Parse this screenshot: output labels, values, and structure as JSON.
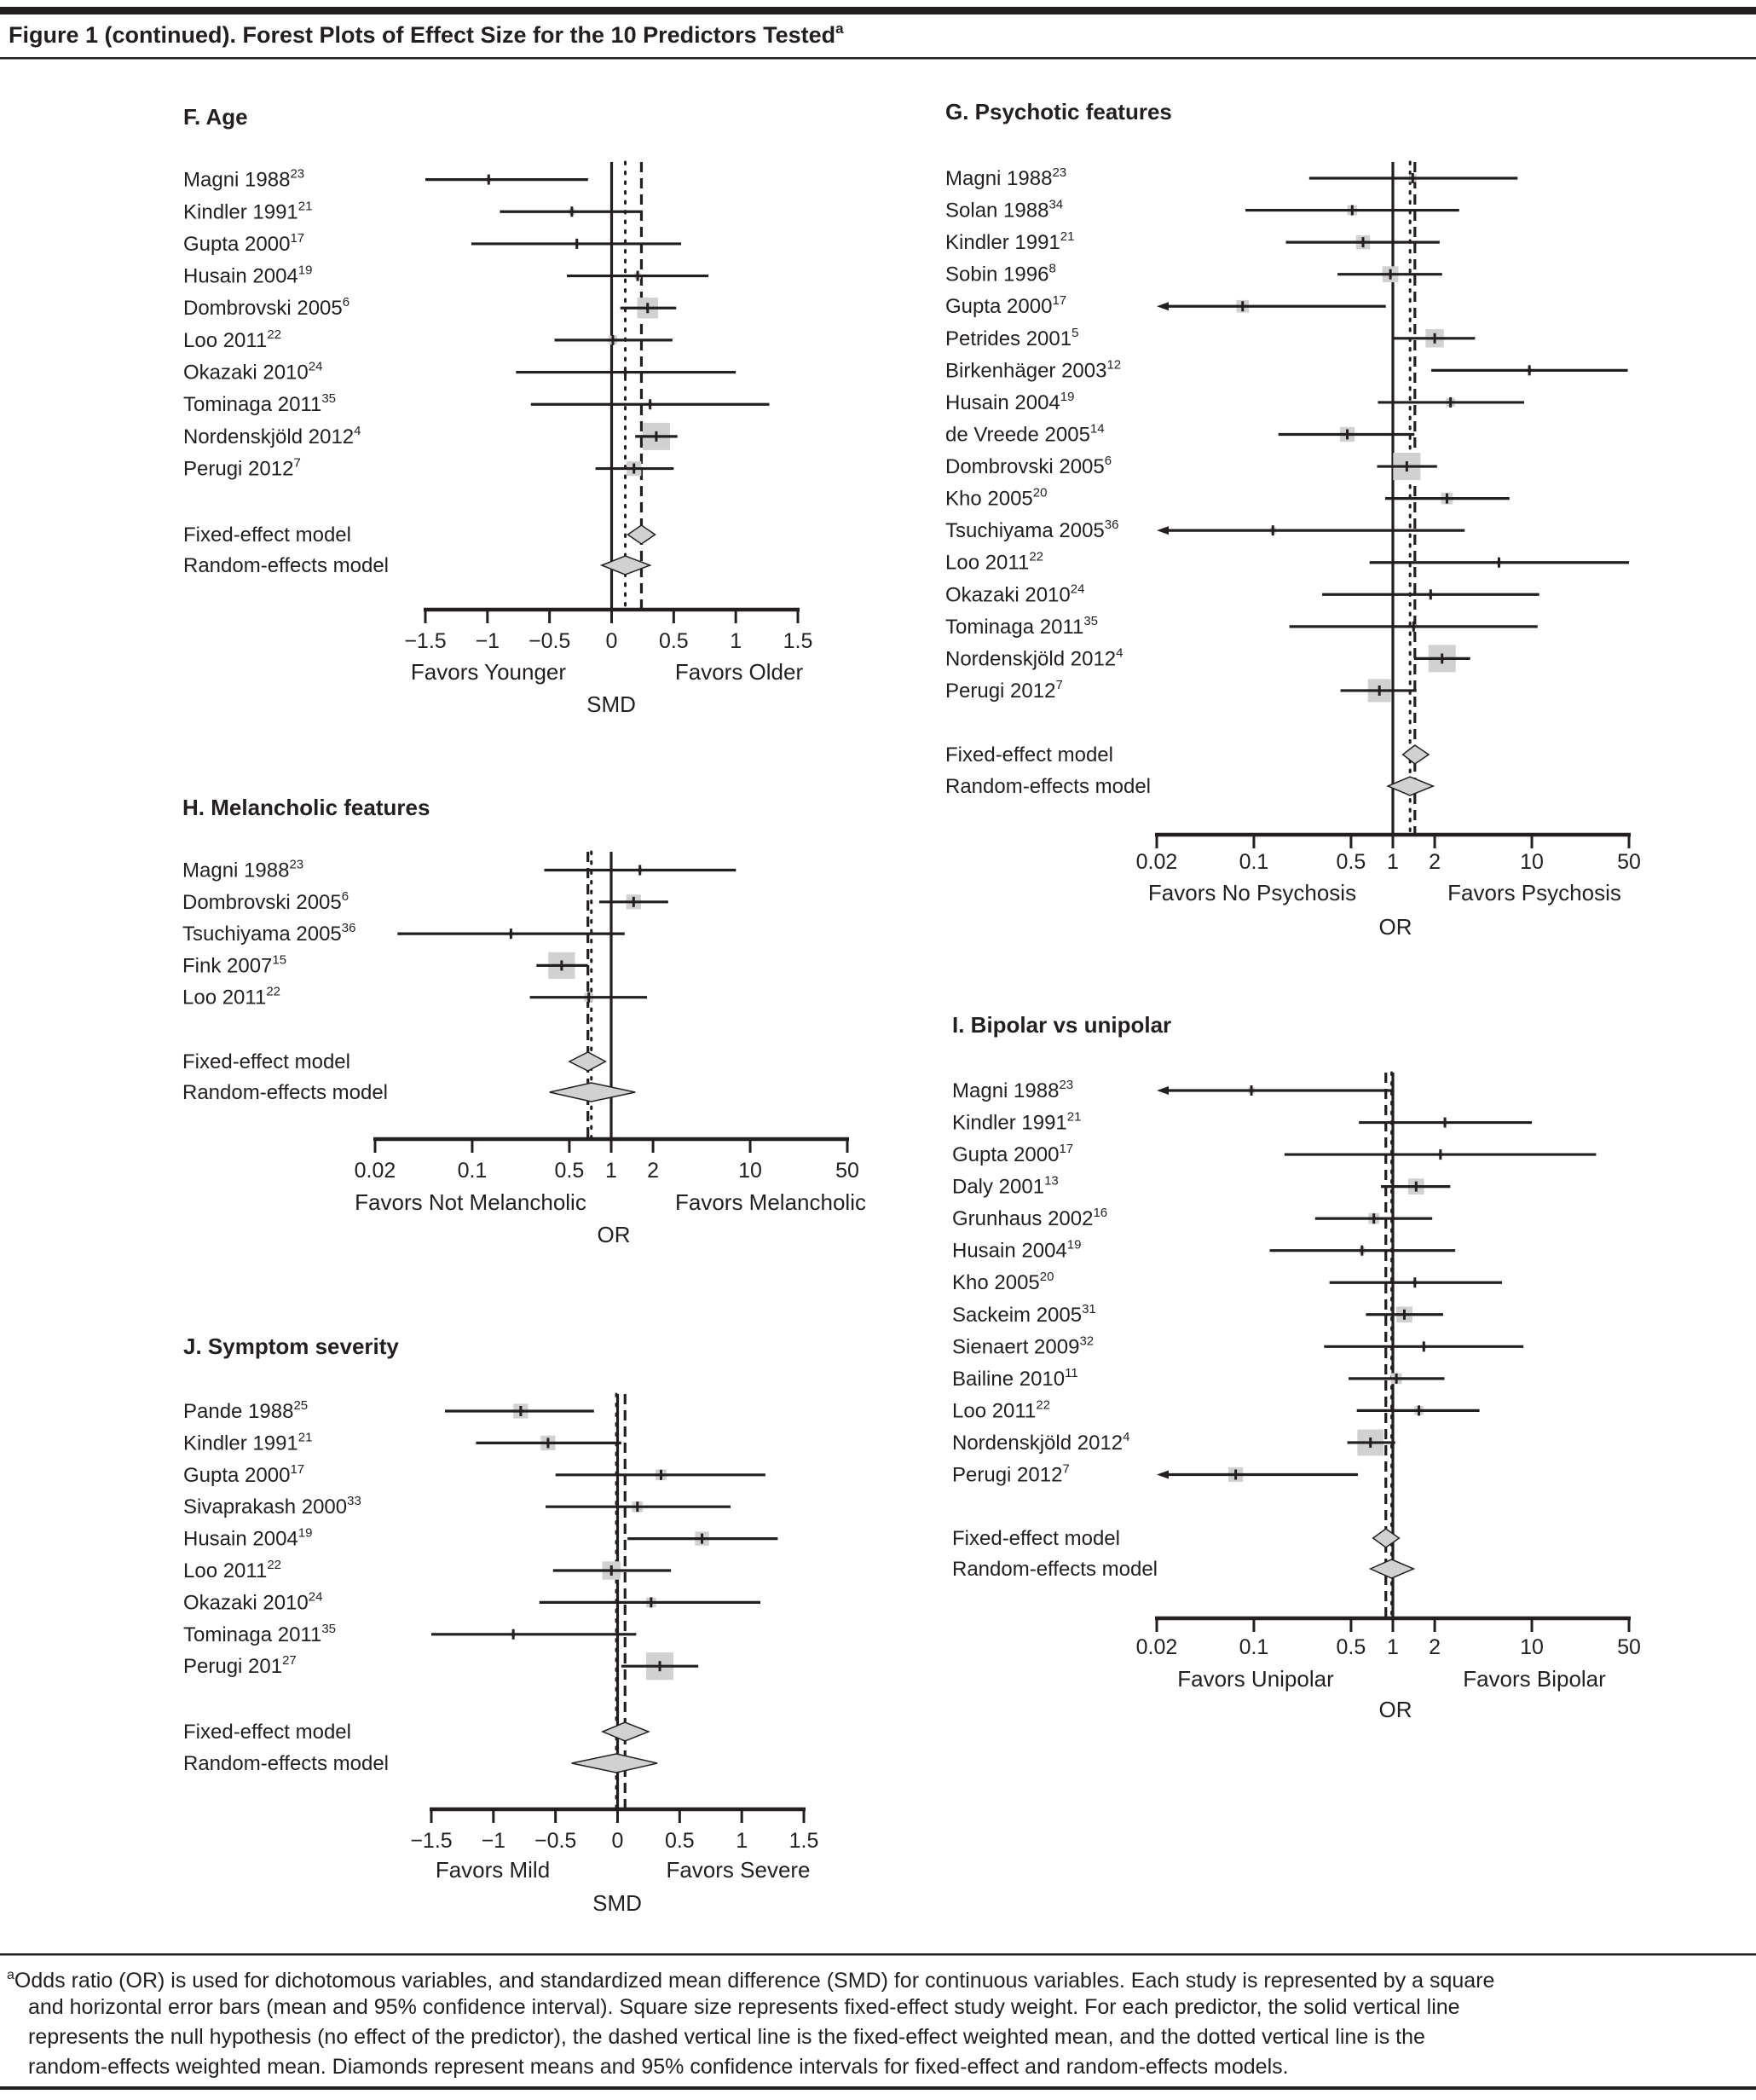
{
  "figure": {
    "title": "Figure 1 (continued). Forest Plots of Effect Size for the 10 Predictors Tested",
    "title_sup": "a"
  },
  "footnote": {
    "marker": "a",
    "lines": [
      "Odds ratio (OR) is used for dichotomous variables, and standardized mean difference (SMD) for continuous variables. Each study is represented by a square",
      "and horizontal error bars (mean and 95% confidence interval). Square size represents fixed-effect study weight. For each predictor, the solid vertical line",
      "represents the null hypothesis (no effect of the predictor), the dashed vertical line is the fixed-effect weighted mean, and the dotted vertical line is the",
      "random-effects weighted mean. Diamonds represent means and 95% confidence intervals for fixed-effect and random-effects models."
    ]
  },
  "colors": {
    "ink": "#231f20",
    "box": "#d1d1d1",
    "diamond": "#d1d1d1"
  },
  "chart_data": [
    {
      "id": "F",
      "type": "forest",
      "title": "F. Age",
      "scale": "linear",
      "xlim": [
        -1.5,
        1.5
      ],
      "null_value": 0,
      "ticks": [
        -1.5,
        -1,
        -0.5,
        0,
        0.5,
        1,
        1.5
      ],
      "tick_labels": [
        "−1.5",
        "−1",
        "−0.5",
        "0",
        "0.5",
        "1",
        "1.5"
      ],
      "favors_left": "Favors Younger",
      "favors_right": "Favors Older",
      "xlabel": "SMD",
      "studies": [
        {
          "name": "Magni 1988",
          "ref": "23",
          "est": -0.99,
          "lo": -1.79,
          "hi": -0.19,
          "weight": 1
        },
        {
          "name": "Kindler 1991",
          "ref": "21",
          "est": -0.32,
          "lo": -0.9,
          "hi": 0.25,
          "weight": 2
        },
        {
          "name": "Gupta 2000",
          "ref": "17",
          "est": -0.28,
          "lo": -1.13,
          "hi": 0.56,
          "weight": 1
        },
        {
          "name": "Husain 2004",
          "ref": "19",
          "est": 0.21,
          "lo": -0.36,
          "hi": 0.78,
          "weight": 2
        },
        {
          "name": "Dombrovski 2005",
          "ref": "6",
          "est": 0.29,
          "lo": 0.07,
          "hi": 0.52,
          "weight": 22
        },
        {
          "name": "Loo 2011",
          "ref": "22",
          "est": 0.01,
          "lo": -0.46,
          "hi": 0.49,
          "weight": 4
        },
        {
          "name": "Okazaki 2010",
          "ref": "24",
          "est": 0.11,
          "lo": -0.77,
          "hi": 1.0,
          "weight": 1
        },
        {
          "name": "Tominaga 2011",
          "ref": "35",
          "est": 0.31,
          "lo": -0.65,
          "hi": 1.27,
          "weight": 1
        },
        {
          "name": "Nordenskjöld 2012",
          "ref": "4",
          "est": 0.36,
          "lo": 0.19,
          "hi": 0.53,
          "weight": 38
        },
        {
          "name": "Perugi 2012",
          "ref": "7",
          "est": 0.18,
          "lo": -0.13,
          "hi": 0.5,
          "weight": 11
        }
      ],
      "fixed": {
        "label": "Fixed-effect model",
        "est": 0.24,
        "lo": 0.13,
        "hi": 0.35
      },
      "random": {
        "label": "Random-effects model",
        "est": 0.11,
        "lo": -0.08,
        "hi": 0.31
      }
    },
    {
      "id": "G",
      "type": "forest",
      "title": "G. Psychotic features",
      "scale": "log",
      "xlim": [
        0.02,
        50
      ],
      "null_value": 1,
      "ticks": [
        0.02,
        0.1,
        0.5,
        1,
        2,
        10,
        50
      ],
      "tick_labels": [
        "0.02",
        "0.1",
        "0.5",
        "1",
        "2",
        "10",
        "50"
      ],
      "favors_left": "Favors No Psychosis",
      "favors_right": "Favors Psychosis",
      "xlabel": "OR",
      "studies": [
        {
          "name": "Magni 1988",
          "ref": "23",
          "est": 1.39,
          "lo": 0.25,
          "hi": 7.9,
          "weight": 3
        },
        {
          "name": "Solan 1988",
          "ref": "34",
          "est": 0.51,
          "lo": 0.087,
          "hi": 3.0,
          "weight": 5
        },
        {
          "name": "Kindler 1991",
          "ref": "21",
          "est": 0.61,
          "lo": 0.17,
          "hi": 2.17,
          "weight": 10
        },
        {
          "name": "Sobin 1996",
          "ref": "8",
          "est": 0.96,
          "lo": 0.4,
          "hi": 2.26,
          "weight": 13
        },
        {
          "name": "Gupta 2000",
          "ref": "17",
          "est": 0.083,
          "lo": 0.02,
          "hi": 0.89,
          "weight": 8,
          "lo_truncated": true
        },
        {
          "name": "Petrides 2001",
          "ref": "5",
          "est": 2.0,
          "lo": 1.02,
          "hi": 3.9,
          "weight": 17
        },
        {
          "name": "Birkenhäger 2003",
          "ref": "12",
          "est": 9.6,
          "lo": 1.89,
          "hi": 49,
          "weight": 1
        },
        {
          "name": "Husain 2004",
          "ref": "19",
          "est": 2.6,
          "lo": 0.78,
          "hi": 8.8,
          "weight": 4
        },
        {
          "name": "de Vreede 2005",
          "ref": "14",
          "est": 0.47,
          "lo": 0.15,
          "hi": 1.43,
          "weight": 11
        },
        {
          "name": "Dombrovski 2005",
          "ref": "6",
          "est": 1.26,
          "lo": 0.77,
          "hi": 2.08,
          "weight": 38
        },
        {
          "name": "Kho 2005",
          "ref": "20",
          "est": 2.45,
          "lo": 0.88,
          "hi": 6.9,
          "weight": 7
        },
        {
          "name": "Tsuchiyama 2005",
          "ref": "36",
          "est": 0.137,
          "lo": 0.02,
          "hi": 3.29,
          "weight": 2,
          "lo_truncated": true
        },
        {
          "name": "Loo 2011",
          "ref": "22",
          "est": 5.8,
          "lo": 0.68,
          "hi": 50,
          "weight": 1
        },
        {
          "name": "Okazaki 2010",
          "ref": "24",
          "est": 1.87,
          "lo": 0.31,
          "hi": 11.3,
          "weight": 1
        },
        {
          "name": "Tominaga 2011",
          "ref": "35",
          "est": 1.41,
          "lo": 0.18,
          "hi": 11.0,
          "weight": 1
        },
        {
          "name": "Nordenskjöld 2012",
          "ref": "4",
          "est": 2.26,
          "lo": 1.42,
          "hi": 3.6,
          "weight": 38
        },
        {
          "name": "Perugi 2012",
          "ref": "7",
          "est": 0.8,
          "lo": 0.42,
          "hi": 1.48,
          "weight": 27
        }
      ],
      "fixed": {
        "label": "Fixed-effect model",
        "est": 1.44,
        "lo": 1.18,
        "hi": 1.81
      },
      "random": {
        "label": "Random-effects model",
        "est": 1.33,
        "lo": 0.92,
        "hi": 1.95
      }
    },
    {
      "id": "H",
      "type": "forest",
      "title": "H. Melancholic features",
      "scale": "log",
      "xlim": [
        0.02,
        50
      ],
      "null_value": 1,
      "ticks": [
        0.02,
        0.1,
        0.5,
        1,
        2,
        10,
        50
      ],
      "tick_labels": [
        "0.02",
        "0.1",
        "0.5",
        "1",
        "2",
        "10",
        "50"
      ],
      "favors_left": "Favors Not Melancholic",
      "favors_right": "Favors Melancholic",
      "xlabel": "OR",
      "studies": [
        {
          "name": "Magni 1988",
          "ref": "23",
          "est": 1.61,
          "lo": 0.33,
          "hi": 7.9,
          "weight": 1
        },
        {
          "name": "Dombrovski 2005",
          "ref": "6",
          "est": 1.45,
          "lo": 0.82,
          "hi": 2.57,
          "weight": 11
        },
        {
          "name": "Tsuchiyama 2005",
          "ref": "36",
          "est": 0.19,
          "lo": 0.029,
          "hi": 1.25,
          "weight": 1
        },
        {
          "name": "Fink 2007",
          "ref": "15",
          "est": 0.44,
          "lo": 0.29,
          "hi": 0.68,
          "weight": 36
        },
        {
          "name": "Loo 2011",
          "ref": "22",
          "est": 0.69,
          "lo": 0.26,
          "hi": 1.81,
          "weight": 4
        }
      ],
      "fixed": {
        "label": "Fixed-effect model",
        "est": 0.68,
        "lo": 0.5,
        "hi": 0.91
      },
      "random": {
        "label": "Random-effects model",
        "est": 0.72,
        "lo": 0.36,
        "hi": 1.49
      }
    },
    {
      "id": "I",
      "type": "forest",
      "title": "I. Bipolar vs unipolar",
      "scale": "log",
      "xlim": [
        0.02,
        50
      ],
      "null_value": 1,
      "ticks": [
        0.02,
        0.1,
        0.5,
        1,
        2,
        10,
        50
      ],
      "tick_labels": [
        "0.02",
        "0.1",
        "0.5",
        "1",
        "2",
        "10",
        "50"
      ],
      "favors_left": "Favors Unipolar",
      "favors_right": "Favors Bipolar",
      "xlabel": "OR",
      "studies": [
        {
          "name": "Magni 1988",
          "ref": "23",
          "est": 0.096,
          "lo": 0.02,
          "hi": 1.02,
          "weight": 2,
          "lo_truncated": true
        },
        {
          "name": "Kindler 1991",
          "ref": "21",
          "est": 2.37,
          "lo": 0.57,
          "hi": 10.0,
          "weight": 1
        },
        {
          "name": "Gupta 2000",
          "ref": "17",
          "est": 2.2,
          "lo": 0.166,
          "hi": 29.0,
          "weight": 1
        },
        {
          "name": "Daly 2001",
          "ref": "13",
          "est": 1.47,
          "lo": 0.82,
          "hi": 2.59,
          "weight": 13
        },
        {
          "name": "Grunhaus 2002",
          "ref": "16",
          "est": 0.73,
          "lo": 0.276,
          "hi": 1.92,
          "weight": 6
        },
        {
          "name": "Husain 2004",
          "ref": "19",
          "est": 0.6,
          "lo": 0.13,
          "hi": 2.81,
          "weight": 2
        },
        {
          "name": "Kho 2005",
          "ref": "20",
          "est": 1.44,
          "lo": 0.35,
          "hi": 6.1,
          "weight": 1
        },
        {
          "name": "Sackeim 2005",
          "ref": "31",
          "est": 1.21,
          "lo": 0.64,
          "hi": 2.3,
          "weight": 13
        },
        {
          "name": "Sienaert 2009",
          "ref": "32",
          "est": 1.67,
          "lo": 0.32,
          "hi": 8.7,
          "weight": 1
        },
        {
          "name": "Bailine 2010",
          "ref": "11",
          "est": 1.06,
          "lo": 0.48,
          "hi": 2.35,
          "weight": 6
        },
        {
          "name": "Loo 2011",
          "ref": "22",
          "est": 1.54,
          "lo": 0.55,
          "hi": 4.2,
          "weight": 4
        },
        {
          "name": "Nordenskjöld 2012",
          "ref": "4",
          "est": 0.69,
          "lo": 0.47,
          "hi": 1.04,
          "weight": 35
        },
        {
          "name": "Perugi 2012",
          "ref": "7",
          "est": 0.074,
          "lo": 0.02,
          "hi": 0.56,
          "weight": 11,
          "lo_truncated": true
        }
      ],
      "fixed": {
        "label": "Fixed-effect model",
        "est": 0.89,
        "lo": 0.72,
        "hi": 1.11
      },
      "random": {
        "label": "Random-effects model",
        "est": 0.98,
        "lo": 0.69,
        "hi": 1.41
      }
    },
    {
      "id": "J",
      "type": "forest",
      "title": "J. Symptom severity",
      "scale": "linear",
      "xlim": [
        -1.5,
        1.5
      ],
      "null_value": 0,
      "ticks": [
        -1.5,
        -1,
        -0.5,
        0,
        0.5,
        1,
        1.5
      ],
      "tick_labels": [
        "−1.5",
        "−1",
        "−0.5",
        "0",
        "0.5",
        "1",
        "1.5"
      ],
      "favors_left": "Favors Mild",
      "favors_right": "Favors Severe",
      "xlabel": "SMD",
      "studies": [
        {
          "name": "Pande 1988",
          "ref": "25",
          "est": -0.78,
          "lo": -1.39,
          "hi": -0.19,
          "weight": 11
        },
        {
          "name": "Kindler 1991",
          "ref": "21",
          "est": -0.56,
          "lo": -1.14,
          "hi": 0.03,
          "weight": 11
        },
        {
          "name": "Gupta 2000",
          "ref": "17",
          "est": 0.35,
          "lo": -0.5,
          "hi": 1.19,
          "weight": 6
        },
        {
          "name": "Sivaprakash 2000",
          "ref": "33",
          "est": 0.16,
          "lo": -0.58,
          "hi": 0.91,
          "weight": 6
        },
        {
          "name": "Husain 2004",
          "ref": "19",
          "est": 0.68,
          "lo": 0.08,
          "hi": 1.29,
          "weight": 10
        },
        {
          "name": "Loo 2011",
          "ref": "22",
          "est": -0.05,
          "lo": -0.52,
          "hi": 0.43,
          "weight": 17
        },
        {
          "name": "Okazaki 2010",
          "ref": "24",
          "est": 0.27,
          "lo": -0.63,
          "hi": 1.15,
          "weight": 5
        },
        {
          "name": "Tominaga 2011",
          "ref": "35",
          "est": -0.84,
          "lo": -1.84,
          "hi": 0.15,
          "weight": 1
        },
        {
          "name": "Perugi 201",
          "ref": "27",
          "est": 0.34,
          "lo": 0.03,
          "hi": 0.65,
          "weight": 38
        }
      ],
      "fixed": {
        "label": "Fixed-effect model",
        "est": 0.06,
        "lo": -0.12,
        "hi": 0.25
      },
      "random": {
        "label": "Random-effects model",
        "est": -0.01,
        "lo": -0.37,
        "hi": 0.32
      }
    }
  ]
}
